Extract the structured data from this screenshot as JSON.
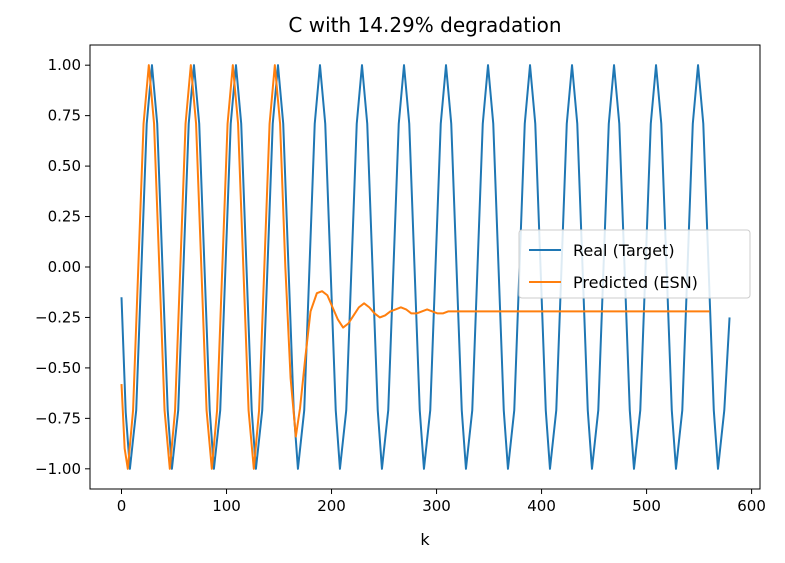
{
  "chart_data": {
    "type": "line",
    "title": "C with 14.29% degradation",
    "xlabel": "k",
    "ylabel": "",
    "xlim": [
      -30,
      608
    ],
    "ylim": [
      -1.1,
      1.1
    ],
    "xticks": [
      0,
      100,
      200,
      300,
      400,
      500,
      600
    ],
    "yticks": [
      -1.0,
      -0.75,
      -0.5,
      -0.25,
      0.0,
      0.25,
      0.5,
      0.75,
      1.0
    ],
    "xtick_labels": [
      "0",
      "100",
      "200",
      "300",
      "400",
      "500",
      "600"
    ],
    "ytick_labels": [
      "−1.00",
      "−0.75",
      "−0.50",
      "−0.25",
      "0.00",
      "0.25",
      "0.50",
      "0.75",
      "1.00"
    ],
    "grid": false,
    "legend_position": "center-right",
    "series": [
      {
        "name": "Real (Target)",
        "color": "#1f77b4",
        "x": [
          0,
          4,
          8,
          14,
          19,
          24,
          29,
          34,
          39,
          44,
          48,
          54,
          59,
          64,
          69,
          74,
          79,
          84,
          88,
          94,
          99,
          104,
          109,
          114,
          119,
          124,
          128,
          134,
          139,
          144,
          149,
          154,
          159,
          164,
          168,
          174,
          179,
          184,
          189,
          194,
          199,
          204,
          208,
          214,
          219,
          224,
          229,
          234,
          239,
          244,
          248,
          254,
          259,
          264,
          269,
          274,
          279,
          284,
          288,
          294,
          299,
          304,
          309,
          314,
          319,
          324,
          328,
          334,
          339,
          344,
          349,
          354,
          359,
          364,
          368,
          374,
          379,
          384,
          389,
          394,
          399,
          404,
          408,
          414,
          419,
          424,
          429,
          434,
          439,
          444,
          448,
          454,
          459,
          464,
          469,
          474,
          479,
          484,
          488,
          494,
          499,
          504,
          509,
          514,
          519,
          524,
          528,
          534,
          539,
          544,
          549,
          554,
          559,
          564,
          568,
          574,
          579
        ],
        "y": [
          -0.15,
          -0.72,
          -1.0,
          -0.71,
          0.0,
          0.71,
          1.0,
          0.71,
          0.0,
          -0.71,
          -1.0,
          -0.71,
          0.0,
          0.71,
          1.0,
          0.71,
          0.0,
          -0.71,
          -1.0,
          -0.71,
          0.0,
          0.71,
          1.0,
          0.71,
          0.0,
          -0.71,
          -1.0,
          -0.71,
          0.0,
          0.71,
          1.0,
          0.71,
          0.0,
          -0.71,
          -1.0,
          -0.71,
          0.0,
          0.71,
          1.0,
          0.71,
          0.0,
          -0.71,
          -1.0,
          -0.71,
          0.0,
          0.71,
          1.0,
          0.71,
          0.0,
          -0.71,
          -1.0,
          -0.71,
          0.0,
          0.71,
          1.0,
          0.71,
          0.0,
          -0.71,
          -1.0,
          -0.71,
          0.0,
          0.71,
          1.0,
          0.71,
          0.0,
          -0.71,
          -1.0,
          -0.71,
          0.0,
          0.71,
          1.0,
          0.71,
          0.0,
          -0.71,
          -1.0,
          -0.71,
          0.0,
          0.71,
          1.0,
          0.71,
          0.0,
          -0.71,
          -1.0,
          -0.71,
          0.0,
          0.71,
          1.0,
          0.71,
          0.0,
          -0.71,
          -1.0,
          -0.71,
          0.0,
          0.71,
          1.0,
          0.71,
          0.0,
          -0.71,
          -1.0,
          -0.71,
          0.0,
          0.71,
          1.0,
          0.71,
          0.0,
          -0.71,
          -1.0,
          -0.71,
          0.0,
          0.71,
          1.0,
          0.71,
          0.0,
          -0.71,
          -1.0,
          -0.71,
          -0.25
        ]
      },
      {
        "name": "Predicted (ESN)",
        "color": "#ff7f0e",
        "x": [
          0,
          3,
          6,
          11,
          16,
          21,
          26,
          31,
          36,
          41,
          46,
          51,
          56,
          61,
          66,
          71,
          76,
          81,
          86,
          91,
          96,
          101,
          106,
          111,
          116,
          121,
          126,
          131,
          136,
          141,
          146,
          151,
          156,
          161,
          166,
          170,
          175,
          180,
          186,
          191,
          196,
          201,
          206,
          211,
          216,
          221,
          226,
          231,
          236,
          241,
          246,
          251,
          256,
          261,
          266,
          271,
          276,
          281,
          286,
          291,
          296,
          301,
          306,
          311,
          316,
          321,
          326,
          331,
          340,
          350,
          360,
          370,
          380,
          400,
          450,
          500,
          560
        ],
        "y": [
          -0.58,
          -0.9,
          -1.0,
          -0.71,
          0.0,
          0.71,
          1.0,
          0.71,
          0.0,
          -0.71,
          -1.0,
          -0.71,
          0.0,
          0.71,
          1.0,
          0.71,
          0.0,
          -0.71,
          -1.0,
          -0.71,
          0.0,
          0.71,
          1.0,
          0.71,
          0.0,
          -0.71,
          -1.0,
          -0.71,
          0.0,
          0.71,
          1.0,
          0.71,
          0.0,
          -0.55,
          -0.84,
          -0.7,
          -0.45,
          -0.22,
          -0.13,
          -0.12,
          -0.14,
          -0.2,
          -0.26,
          -0.3,
          -0.28,
          -0.24,
          -0.2,
          -0.18,
          -0.2,
          -0.23,
          -0.25,
          -0.24,
          -0.22,
          -0.21,
          -0.2,
          -0.21,
          -0.23,
          -0.23,
          -0.22,
          -0.21,
          -0.22,
          -0.23,
          -0.23,
          -0.22,
          -0.22,
          -0.22,
          -0.22,
          -0.22,
          -0.22,
          -0.22,
          -0.22,
          -0.22,
          -0.22,
          -0.22,
          -0.22,
          -0.22,
          -0.22
        ]
      }
    ]
  }
}
